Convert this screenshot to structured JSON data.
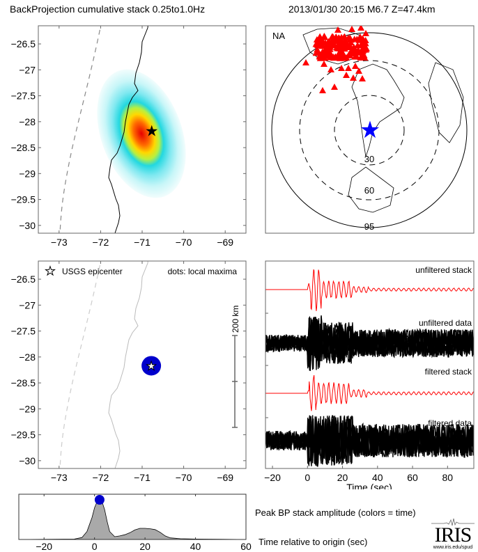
{
  "header": {
    "title_left": "BackProjection cumulative stack 0.25to1.0Hz",
    "title_right": "2013/01/30 20:15  M6.7  Z=47.4km"
  },
  "colors": {
    "stack_red": "#ff0000",
    "epicenter_blue": "#0000cc",
    "map_star_blue": "#0000ff",
    "station_red": "#ff0000",
    "fill_gray": "#a9a9a9",
    "coast_gray": "#bbbbbb"
  },
  "chart_data": [
    {
      "id": "bp-cumulative-map",
      "type": "heatmap",
      "title": "",
      "xlim": [
        -73.5,
        -68.5
      ],
      "ylim": [
        -30.15,
        -26.15
      ],
      "xticks": [
        "-73",
        "-72",
        "-71",
        "-70",
        "-69"
      ],
      "yticks": [
        "-26.5",
        "-27",
        "-27.5",
        "-28",
        "-28.5",
        "-29",
        "-29.5",
        "-30"
      ],
      "xtick_values": [
        -73,
        -72,
        -71,
        -70,
        -69
      ],
      "ytick_values": [
        -26.5,
        -27,
        -27.5,
        -28,
        -28.5,
        -29,
        -29.5,
        -30
      ],
      "peak": {
        "lon": -70.75,
        "lat": -28.15
      },
      "epicenter": {
        "lon": -70.77,
        "lat": -28.17
      }
    },
    {
      "id": "station-map",
      "type": "scatter",
      "region_label": "NA",
      "distance_rings_deg": [
        "30",
        "60",
        "95"
      ],
      "epicenter_marker": "blue-star"
    },
    {
      "id": "local-maxima-map",
      "type": "scatter",
      "xlim": [
        -73.5,
        -68.5
      ],
      "ylim": [
        -30.15,
        -26.15
      ],
      "xticks": [
        "-73",
        "-72",
        "-71",
        "-70",
        "-69"
      ],
      "yticks": [
        "-26.5",
        "-27",
        "-27.5",
        "-28",
        "-28.5",
        "-29",
        "-29.5",
        "-30"
      ],
      "xtick_values": [
        -73,
        -72,
        -71,
        -70,
        -69
      ],
      "ytick_values": [
        -26.5,
        -27,
        -27.5,
        -28,
        -28.5,
        -29,
        -29.5,
        -30
      ],
      "legend_star": "USGS epicenter",
      "legend_dots": "dots: local maxima",
      "scale_bar_label": "200 km",
      "local_maxima": [
        {
          "lon": -70.78,
          "lat": -28.17
        }
      ],
      "epicenter": {
        "lon": -70.78,
        "lat": -28.17
      }
    },
    {
      "id": "waveforms",
      "type": "line",
      "xlabel": "Time (sec)",
      "xlim": [
        -24,
        95
      ],
      "xticks": [
        "-20",
        "0",
        "20",
        "40",
        "60",
        "80"
      ],
      "xtick_values": [
        -20,
        0,
        20,
        40,
        60,
        80
      ],
      "traces": [
        {
          "name": "unfiltered stack",
          "color": "#ff0000"
        },
        {
          "name": "unfiltered data",
          "color": "#000000"
        },
        {
          "name": "filtered stack",
          "color": "#ff0000"
        },
        {
          "name": "filtered data",
          "color": "#000000"
        }
      ]
    },
    {
      "id": "peak-bp-amplitude",
      "type": "area",
      "label": "Peak BP stack amplitude (colors = time)",
      "xlabel": "Time relative to origin (sec)",
      "xlim": [
        -30,
        60
      ],
      "xticks": [
        "-20",
        "0",
        "20",
        "40",
        "60"
      ],
      "xtick_values": [
        -20,
        0,
        20,
        40,
        60
      ],
      "x": [
        -30,
        -8,
        -5,
        -3,
        -1,
        0,
        1,
        2,
        3,
        4,
        5,
        6,
        8,
        10,
        12,
        14,
        16,
        18,
        20,
        22,
        24,
        26,
        28,
        30,
        34,
        40,
        50,
        60
      ],
      "y": [
        0,
        0.01,
        0.05,
        0.2,
        0.55,
        0.8,
        0.95,
        1.0,
        0.95,
        0.75,
        0.45,
        0.2,
        0.07,
        0.09,
        0.12,
        0.17,
        0.24,
        0.28,
        0.28,
        0.27,
        0.25,
        0.18,
        0.09,
        0.04,
        0.02,
        0.01,
        0.005,
        0
      ],
      "peak_marker": {
        "x": 2,
        "y": 1.0
      }
    }
  ],
  "logo": {
    "name": "IRIS",
    "url_text": "www.iris.edu/spud"
  }
}
